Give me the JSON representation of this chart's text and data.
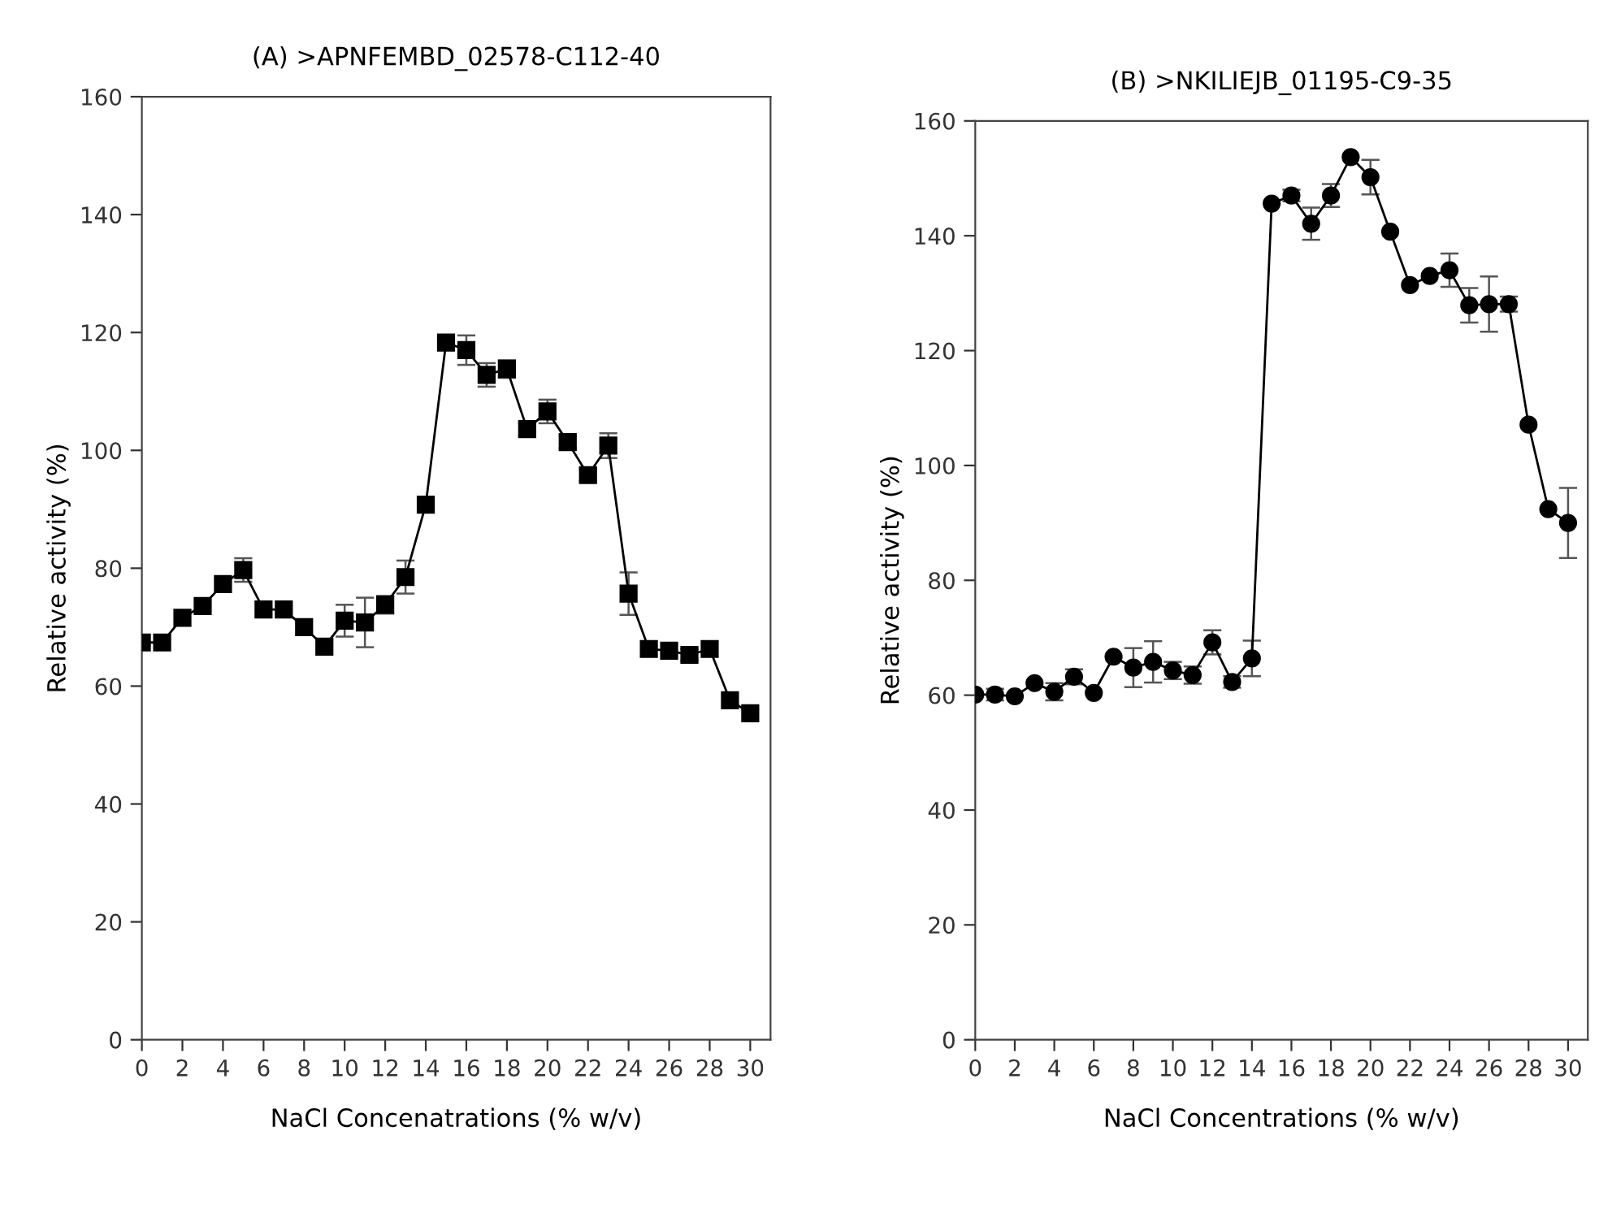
{
  "chart_data": [
    {
      "type": "line",
      "title": "(A) >APNFEMBD_02578-C112-40",
      "xlabel": "NaCl Concenatrations (% w/v)",
      "ylabel": "Relative activity (%)",
      "x": [
        0,
        1,
        2,
        3,
        4,
        5,
        6,
        7,
        8,
        9,
        10,
        11,
        12,
        13,
        14,
        15,
        16,
        17,
        18,
        19,
        20,
        21,
        22,
        23,
        24,
        25,
        26,
        27,
        28,
        29,
        30
      ],
      "series": [
        {
          "color": "#000000",
          "marker": "square",
          "values": [
            67.4,
            67.4,
            71.6,
            73.6,
            77.3,
            79.7,
            73.0,
            73.0,
            70.0,
            66.7,
            71.1,
            70.8,
            73.8,
            78.5,
            90.8,
            118.3,
            117.0,
            112.8,
            113.8,
            103.6,
            106.6,
            101.4,
            95.8,
            100.8,
            75.7,
            66.3,
            66.0,
            65.3,
            66.3,
            57.6,
            55.4
          ],
          "errors": [
            null,
            null,
            null,
            null,
            null,
            2,
            null,
            null,
            null,
            null,
            2.7,
            4.2,
            1.5,
            2.8,
            null,
            null,
            2.5,
            2,
            1.5,
            1,
            2,
            1,
            1,
            2.1,
            3.6,
            null,
            null,
            1,
            null,
            null,
            null
          ]
        }
      ],
      "xlim": [
        0,
        31
      ],
      "ylim": [
        0,
        160
      ],
      "xticks": [
        0,
        2,
        4,
        6,
        8,
        10,
        12,
        14,
        16,
        18,
        20,
        22,
        24,
        26,
        28,
        30
      ],
      "yticks": [
        0,
        20,
        40,
        60,
        80,
        100,
        120,
        140,
        160
      ],
      "line_style": "solid"
    },
    {
      "type": "line",
      "title": "(B) >NKILIEJB_01195-C9-35",
      "xlabel": "NaCl Concentrations (% w/v)",
      "ylabel": "Relative activity (%)",
      "x": [
        0,
        1,
        2,
        3,
        4,
        5,
        6,
        7,
        8,
        9,
        10,
        11,
        12,
        13,
        14,
        15,
        16,
        17,
        18,
        19,
        20,
        21,
        22,
        23,
        24,
        25,
        26,
        27,
        28,
        29,
        30
      ],
      "series": [
        {
          "color": "#000000",
          "marker": "circle",
          "values": [
            60.1,
            60.1,
            59.8,
            62.1,
            60.6,
            63.2,
            60.4,
            66.7,
            64.8,
            65.8,
            64.3,
            63.5,
            69.2,
            62.3,
            66.4,
            145.6,
            147.0,
            142.1,
            147.0,
            153.7,
            150.2,
            140.7,
            131.4,
            133.0,
            134.0,
            127.9,
            128.1,
            128.1,
            107.1,
            92.4,
            90.0
          ],
          "errors": [
            null,
            1,
            null,
            null,
            1.5,
            1.3,
            null,
            null,
            3.4,
            3.6,
            1.5,
            1.5,
            2.1,
            1,
            3.1,
            null,
            1,
            2.8,
            2,
            null,
            3,
            null,
            null,
            null,
            2.9,
            3,
            4.8,
            1.3,
            null,
            null,
            6.1
          ]
        }
      ],
      "xlim": [
        0,
        31
      ],
      "ylim": [
        0,
        160
      ],
      "xticks": [
        0,
        2,
        4,
        6,
        8,
        10,
        12,
        14,
        16,
        18,
        20,
        22,
        24,
        26,
        28,
        30
      ],
      "yticks": [
        0,
        20,
        40,
        60,
        80,
        100,
        120,
        140,
        160
      ],
      "line_style": "solid"
    }
  ]
}
